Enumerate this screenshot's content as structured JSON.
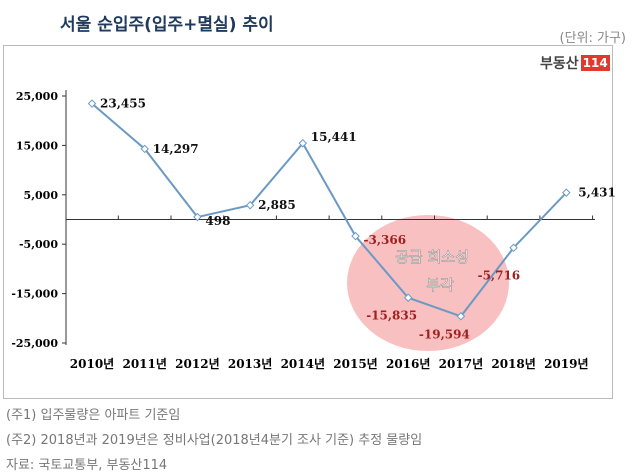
{
  "title": "서울 순입주(입주+멸실) 추이",
  "unit": "(단위: 가구)",
  "logo": {
    "text": "부동산",
    "num": "114"
  },
  "chart_data": {
    "type": "line",
    "categories": [
      "2010년",
      "2011년",
      "2012년",
      "2013년",
      "2014년",
      "2015년",
      "2016년",
      "2017년",
      "2018년",
      "2019년"
    ],
    "values": [
      23455,
      14297,
      498,
      2885,
      15441,
      -3366,
      -15835,
      -19594,
      -5716,
      5431
    ],
    "data_labels": [
      "23,455",
      "14,297",
      "498",
      "2,885",
      "15,441",
      "-3,366",
      "-15,835",
      "-19,594",
      "-5,716",
      "5,431"
    ],
    "ylim": [
      -25000,
      25000
    ],
    "yticks": [
      25000,
      15000,
      5000,
      -5000,
      -15000,
      -25000
    ],
    "ytick_labels": [
      "25,000",
      "15,000",
      "5,000",
      "-5,000",
      "-15,000",
      "-25,000"
    ],
    "line_color": "#6a9ac4",
    "negative_label_color": "#a31f1f",
    "highlight": {
      "text_line1": "공급 희소성",
      "text_line2": "부각",
      "color": "#f7b5b5"
    }
  },
  "notes": [
    "(주1) 입주물량은 아파트 기준임",
    "(주2) 2018년과 2019년은 정비사업(2018년4분기 조사 기준) 추정 물량임",
    "자료: 국토교통부, 부동산114"
  ]
}
